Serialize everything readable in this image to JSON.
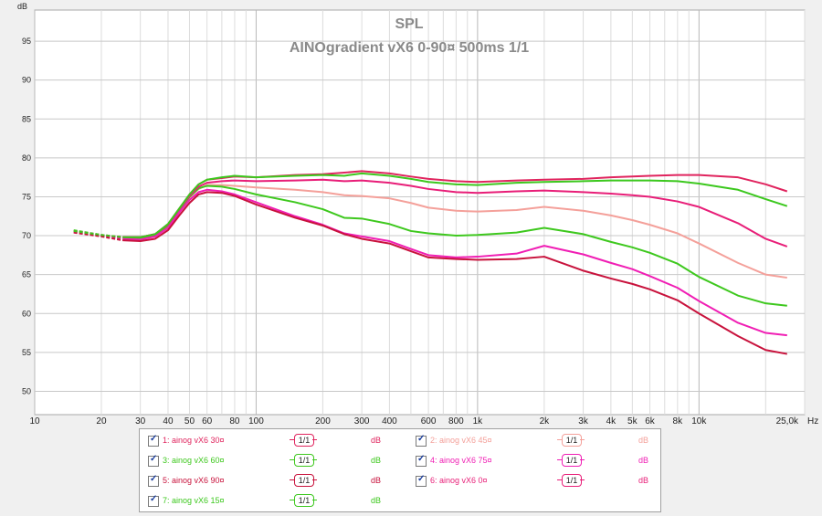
{
  "chart_data": {
    "type": "line",
    "title": "SPL",
    "subtitle": "AINOgradient vX6 0-90¤ 500ms 1/1",
    "ylabel": "dB",
    "xlabel": "Hz",
    "xscale": "log",
    "xlim": [
      10,
      30000
    ],
    "ylim": [
      47,
      99
    ],
    "grid": true,
    "y_ticks": [
      50,
      55,
      60,
      65,
      70,
      75,
      80,
      85,
      90,
      95
    ],
    "x_ticks": [
      {
        "v": 10,
        "label": "10"
      },
      {
        "v": 20,
        "label": "20"
      },
      {
        "v": 30,
        "label": "30"
      },
      {
        "v": 40,
        "label": "40"
      },
      {
        "v": 50,
        "label": "50"
      },
      {
        "v": 60,
        "label": "60"
      },
      {
        "v": 80,
        "label": "80"
      },
      {
        "v": 100,
        "label": "100"
      },
      {
        "v": 200,
        "label": "200"
      },
      {
        "v": 300,
        "label": "300"
      },
      {
        "v": 400,
        "label": "400"
      },
      {
        "v": 600,
        "label": "600"
      },
      {
        "v": 800,
        "label": "800"
      },
      {
        "v": 1000,
        "label": "1k"
      },
      {
        "v": 2000,
        "label": "2k"
      },
      {
        "v": 3000,
        "label": "3k"
      },
      {
        "v": 4000,
        "label": "4k"
      },
      {
        "v": 5000,
        "label": "5k"
      },
      {
        "v": 6000,
        "label": "6k"
      },
      {
        "v": 8000,
        "label": "8k"
      },
      {
        "v": 10000,
        "label": "10k"
      },
      {
        "v": 25000,
        "label": "25,0k"
      }
    ],
    "x": [
      15,
      20,
      25,
      30,
      35,
      40,
      45,
      50,
      55,
      60,
      70,
      80,
      100,
      150,
      200,
      250,
      300,
      400,
      500,
      600,
      800,
      1000,
      1500,
      2000,
      3000,
      4000,
      5000,
      6000,
      8000,
      10000,
      15000,
      20000,
      25000
    ],
    "series": [
      {
        "name": "1: ainog vX6 30¤",
        "color": "#e0245e",
        "values": [
          70.6,
          70.0,
          69.8,
          69.8,
          70.2,
          71.5,
          73.5,
          75.3,
          76.6,
          77.2,
          77.4,
          77.6,
          77.5,
          77.8,
          77.9,
          78.1,
          78.3,
          78.0,
          77.6,
          77.3,
          77.0,
          76.9,
          77.1,
          77.2,
          77.3,
          77.5,
          77.6,
          77.7,
          77.8,
          77.8,
          77.5,
          76.6,
          75.7
        ]
      },
      {
        "name": "2: ainog vX6 45¤",
        "color": "#f4a09a",
        "values": [
          70.6,
          70.0,
          69.7,
          69.7,
          70.0,
          71.2,
          73.2,
          74.9,
          76.0,
          76.5,
          76.5,
          76.4,
          76.2,
          75.9,
          75.6,
          75.2,
          75.1,
          74.8,
          74.2,
          73.6,
          73.2,
          73.1,
          73.3,
          73.7,
          73.2,
          72.6,
          72.0,
          71.4,
          70.3,
          69.0,
          66.5,
          65.0,
          64.6
        ]
      },
      {
        "name": "3: ainog vX6 60¤",
        "color": "#3ec81e",
        "values": [
          70.7,
          70.1,
          69.8,
          69.7,
          70.1,
          71.3,
          73.3,
          75.0,
          76.1,
          76.4,
          76.3,
          76.0,
          75.3,
          74.3,
          73.4,
          72.3,
          72.2,
          71.5,
          70.6,
          70.3,
          70.0,
          70.1,
          70.4,
          71.0,
          70.2,
          69.2,
          68.5,
          67.8,
          66.4,
          64.7,
          62.3,
          61.3,
          61.0
        ]
      },
      {
        "name": "4: ainog vX6 75¤",
        "color": "#f01eb4",
        "values": [
          70.5,
          70.0,
          69.6,
          69.5,
          69.9,
          71.0,
          73.0,
          74.6,
          75.6,
          75.9,
          75.7,
          75.3,
          74.3,
          72.5,
          71.4,
          70.3,
          69.9,
          69.3,
          68.3,
          67.5,
          67.2,
          67.3,
          67.7,
          68.7,
          67.6,
          66.5,
          65.7,
          64.8,
          63.3,
          61.6,
          58.8,
          57.5,
          57.2
        ]
      },
      {
        "name": "5: ainog vX6 90¤",
        "color": "#c8123c",
        "values": [
          70.4,
          69.9,
          69.4,
          69.3,
          69.6,
          70.7,
          72.6,
          74.2,
          75.3,
          75.6,
          75.5,
          75.1,
          74.0,
          72.3,
          71.3,
          70.2,
          69.6,
          69.0,
          68.0,
          67.2,
          67.0,
          66.9,
          67.0,
          67.3,
          65.5,
          64.5,
          63.8,
          63.1,
          61.7,
          60.0,
          57.1,
          55.3,
          54.8
        ]
      },
      {
        "name": "6: ainog vX6 0¤",
        "color": "#e81e78",
        "values": [
          70.6,
          70.1,
          69.8,
          69.8,
          70.2,
          71.4,
          73.4,
          75.1,
          76.3,
          76.8,
          77.0,
          77.1,
          77.0,
          77.1,
          77.2,
          77.0,
          77.1,
          76.8,
          76.4,
          76.0,
          75.6,
          75.5,
          75.7,
          75.8,
          75.6,
          75.4,
          75.2,
          75.0,
          74.4,
          73.7,
          71.6,
          69.6,
          68.6
        ]
      },
      {
        "name": "7: ainog vX6 15¤",
        "color": "#3cc81e",
        "values": [
          70.6,
          70.1,
          69.8,
          69.8,
          70.2,
          71.5,
          73.5,
          75.3,
          76.6,
          77.2,
          77.5,
          77.7,
          77.5,
          77.7,
          77.8,
          77.7,
          78.0,
          77.7,
          77.3,
          76.9,
          76.6,
          76.5,
          76.8,
          76.9,
          77.0,
          77.1,
          77.1,
          77.1,
          77.0,
          76.7,
          75.9,
          74.7,
          73.8
        ]
      }
    ]
  },
  "legend": [
    {
      "label": "1: ainog vX6 30¤",
      "smoothing": "1/1",
      "unit": "dB",
      "color": "#e0245e",
      "checked": true
    },
    {
      "label": "2: ainog vX6 45¤",
      "smoothing": "1/1",
      "unit": "dB",
      "color": "#f4a09a",
      "checked": true
    },
    {
      "label": "3: ainog vX6 60¤",
      "smoothing": "1/1",
      "unit": "dB",
      "color": "#3ec81e",
      "checked": true
    },
    {
      "label": "4: ainog vX6 75¤",
      "smoothing": "1/1",
      "unit": "dB",
      "color": "#f01eb4",
      "checked": true
    },
    {
      "label": "5: ainog vX6 90¤",
      "smoothing": "1/1",
      "unit": "dB",
      "color": "#c8123c",
      "checked": true
    },
    {
      "label": "6: ainog vX6 0¤",
      "smoothing": "1/1",
      "unit": "dB",
      "color": "#e81e78",
      "checked": true
    },
    {
      "label": "7: ainog vX6 15¤",
      "smoothing": "1/1",
      "unit": "dB",
      "color": "#3cc81e",
      "checked": true
    }
  ]
}
